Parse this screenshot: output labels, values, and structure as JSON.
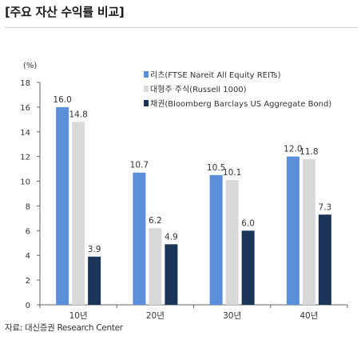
{
  "title": "[주요 자산 수익률 비교]",
  "source": "자료: 대신증권 Research Center",
  "colors": {
    "reits": "#5b8fd9",
    "stocks": "#d9d9d9",
    "bonds": "#1b3558",
    "axis": "#666666"
  },
  "chart_data": {
    "type": "bar",
    "ylabel": "(%)",
    "ylim": [
      0,
      18
    ],
    "yticks": [
      0,
      2,
      4,
      6,
      8,
      10,
      12,
      14,
      16,
      18
    ],
    "grid": false,
    "legend_position": "top-right",
    "categories": [
      "10년",
      "20년",
      "30년",
      "40년"
    ],
    "series": [
      {
        "name": "리츠(FTSE Nareit All Equity REITs)",
        "color": "#5b8fd9",
        "values": [
          16.0,
          10.7,
          10.5,
          12.0
        ]
      },
      {
        "name": "대형주 주식(Russell 1000)",
        "color": "#d9d9d9",
        "values": [
          14.8,
          6.2,
          10.1,
          11.8
        ]
      },
      {
        "name": "채권(Bloomberg Barclays US Aggregate Bond)",
        "color": "#1b3558",
        "values": [
          3.9,
          4.9,
          6.0,
          7.3
        ]
      }
    ]
  }
}
